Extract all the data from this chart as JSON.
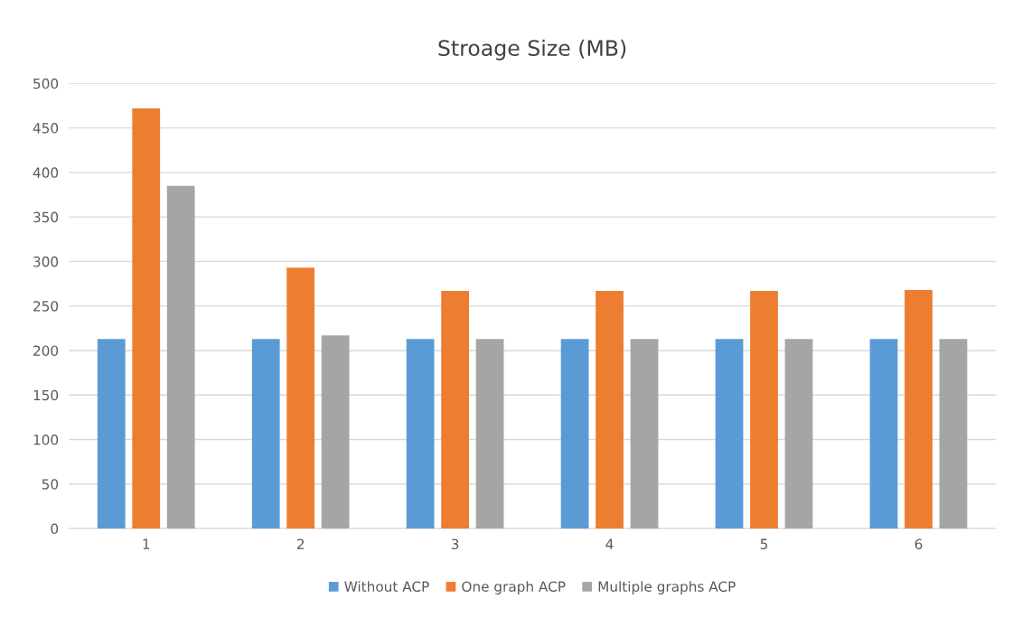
{
  "chart_data": {
    "type": "bar",
    "title": "Stroage Size (MB)",
    "categories": [
      "1",
      "2",
      "3",
      "4",
      "5",
      "6"
    ],
    "series": [
      {
        "name": "Without ACP",
        "color": "#5b9bd5",
        "values": [
          213,
          213,
          213,
          213,
          213,
          213
        ]
      },
      {
        "name": "One graph ACP",
        "color": "#ed7d31",
        "values": [
          472,
          293,
          267,
          267,
          267,
          268
        ]
      },
      {
        "name": "Multiple graphs ACP",
        "color": "#a5a5a5",
        "values": [
          385,
          217,
          213,
          213,
          213,
          213
        ]
      }
    ],
    "ylim": [
      0,
      500
    ],
    "yticks": [
      0,
      50,
      100,
      150,
      200,
      250,
      300,
      350,
      400,
      450,
      500
    ],
    "grid": "y",
    "legend": "bottom"
  }
}
